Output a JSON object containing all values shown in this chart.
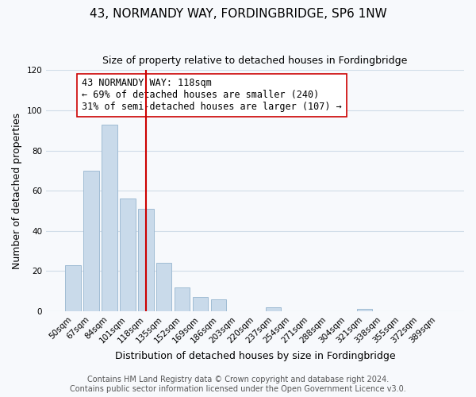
{
  "title": "43, NORMANDY WAY, FORDINGBRIDGE, SP6 1NW",
  "subtitle": "Size of property relative to detached houses in Fordingbridge",
  "xlabel": "Distribution of detached houses by size in Fordingbridge",
  "ylabel": "Number of detached properties",
  "bar_labels": [
    "50sqm",
    "67sqm",
    "84sqm",
    "101sqm",
    "118sqm",
    "135sqm",
    "152sqm",
    "169sqm",
    "186sqm",
    "203sqm",
    "220sqm",
    "237sqm",
    "254sqm",
    "271sqm",
    "288sqm",
    "304sqm",
    "321sqm",
    "338sqm",
    "355sqm",
    "372sqm",
    "389sqm"
  ],
  "bar_values": [
    23,
    70,
    93,
    56,
    51,
    24,
    12,
    7,
    6,
    0,
    0,
    2,
    0,
    0,
    0,
    0,
    1,
    0,
    0,
    0,
    0
  ],
  "bar_color": "#c9daea",
  "bar_edge_color": "#a0bcd4",
  "vline_x": 4.0,
  "vline_color": "#cc0000",
  "annotation_text": "43 NORMANDY WAY: 118sqm\n← 69% of detached houses are smaller (240)\n31% of semi-detached houses are larger (107) →",
  "annotation_box_edgecolor": "#cc0000",
  "annotation_box_facecolor": "white",
  "ylim": [
    0,
    120
  ],
  "yticks": [
    0,
    20,
    40,
    60,
    80,
    100,
    120
  ],
  "footer_text": "Contains HM Land Registry data © Crown copyright and database right 2024.\nContains public sector information licensed under the Open Government Licence v3.0.",
  "bg_color": "#f7f9fc",
  "grid_color": "#d0dce8",
  "title_fontsize": 11,
  "subtitle_fontsize": 9,
  "axis_label_fontsize": 9,
  "tick_fontsize": 7.5,
  "annotation_fontsize": 8.5,
  "footer_fontsize": 7
}
